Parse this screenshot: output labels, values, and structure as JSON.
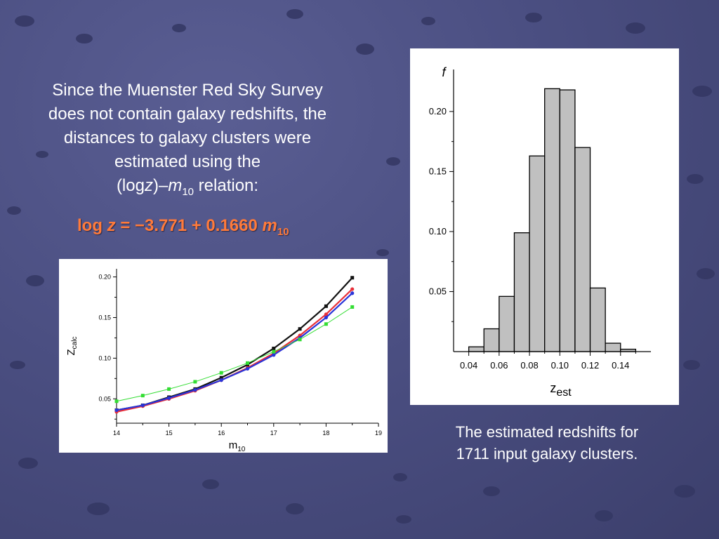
{
  "intro": {
    "line1": "Since the Muenster Red Sky Survey",
    "line2": "does not contain galaxy redshifts, the",
    "line3": "distances to galaxy clusters were",
    "line4": "estimated using the",
    "rel_open": "(log",
    "rel_z": "z",
    "rel_mid": ")–",
    "rel_m": "m",
    "rel_sub": "10",
    "rel_end": " relation:"
  },
  "formula": {
    "prefix": "log ",
    "z": "z",
    "body": " = −3.771 + 0.1660  ",
    "m": "m",
    "sub": "10"
  },
  "caption": {
    "line1": "The estimated redshifts for",
    "line2": "1711 input galaxy clusters."
  },
  "chart_data": [
    {
      "type": "line",
      "xlabel_main": "m",
      "xlabel_sub": "10",
      "ylabel_main": "Z",
      "ylabel_sub": "calc",
      "xlim": [
        14,
        19
      ],
      "ylim": [
        0.02,
        0.21
      ],
      "xticks": [
        14,
        15,
        16,
        17,
        18,
        19
      ],
      "xtick_labels": [
        "14",
        "15",
        "16",
        "17",
        "18",
        "19"
      ],
      "yticks": [
        0.05,
        0.1,
        0.15,
        0.2
      ],
      "ytick_labels": [
        "0.05",
        "0.10",
        "0.15",
        "0.20"
      ],
      "x": [
        14,
        14.5,
        15,
        15.5,
        16,
        16.5,
        17,
        17.5,
        18,
        18.5
      ],
      "series": [
        {
          "color": "#111111",
          "marker": "square",
          "values": [
            0.036,
            0.042,
            0.052,
            0.062,
            0.076,
            0.092,
            0.112,
            0.136,
            0.164,
            0.199
          ]
        },
        {
          "color": "#e8303a",
          "marker": "circle",
          "values": [
            0.034,
            0.041,
            0.05,
            0.06,
            0.073,
            0.088,
            0.106,
            0.128,
            0.154,
            0.185
          ]
        },
        {
          "color": "#2a34d8",
          "marker": "circle",
          "values": [
            0.036,
            0.042,
            0.051,
            0.061,
            0.073,
            0.087,
            0.104,
            0.125,
            0.15,
            0.18
          ]
        },
        {
          "color": "#33dd33",
          "marker": "square",
          "values": [
            0.047,
            0.054,
            0.062,
            0.071,
            0.082,
            0.094,
            0.108,
            0.123,
            0.142,
            0.163
          ]
        }
      ]
    },
    {
      "type": "bar",
      "ylabel": "f",
      "xlabel_main": "z",
      "xlabel_sub": "est",
      "bin_width": 0.01,
      "bin_starts": [
        0.04,
        0.05,
        0.06,
        0.07,
        0.08,
        0.09,
        0.1,
        0.11,
        0.12,
        0.13,
        0.14
      ],
      "values": [
        0.004,
        0.019,
        0.046,
        0.099,
        0.163,
        0.219,
        0.218,
        0.17,
        0.053,
        0.007,
        0.002
      ],
      "bar_color": "#c0c0c0",
      "xlim": [
        0.03,
        0.16
      ],
      "ylim": [
        0,
        0.235
      ],
      "xticks": [
        0.04,
        0.06,
        0.08,
        0.1,
        0.12,
        0.14
      ],
      "xtick_labels": [
        "0.04",
        "0.06",
        "0.08",
        "0.10",
        "0.12",
        "0.14"
      ],
      "yticks": [
        0.05,
        0.1,
        0.15,
        0.2
      ],
      "ytick_labels": [
        "0.05",
        "0.10",
        "0.15",
        "0.20"
      ]
    }
  ]
}
